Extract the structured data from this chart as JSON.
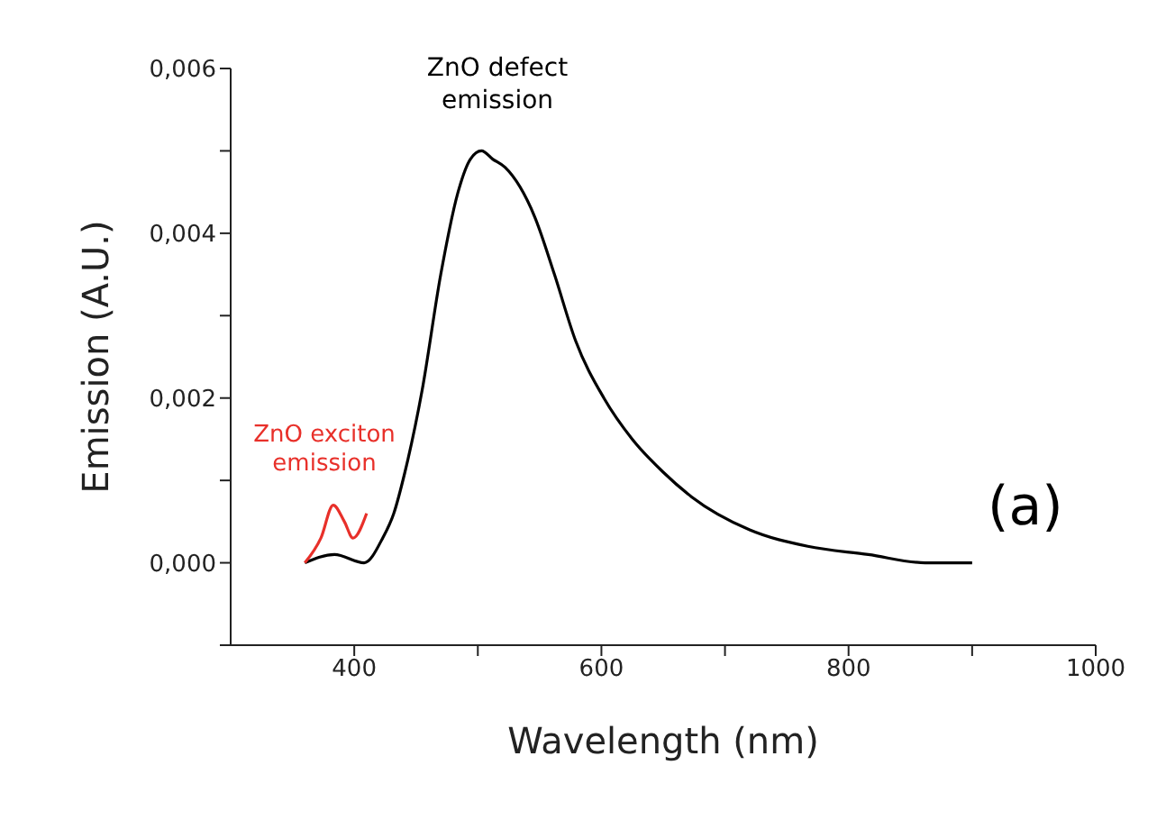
{
  "chart_data": {
    "type": "line",
    "xlabel": "Wavelength (nm)",
    "ylabel": "Emission (A.U.)",
    "xlim": [
      300,
      1000
    ],
    "xticks": [
      400,
      {
        "value": 500,
        "label": null
      },
      600,
      {
        "value": 700,
        "label": null
      },
      800,
      {
        "value": 900,
        "label": null
      },
      1000
    ],
    "ylim": [
      -0.001,
      0.006
    ],
    "yticks": [
      {
        "value": -0.001,
        "label": null
      },
      {
        "value": 0,
        "label": "0,000"
      },
      {
        "value": 0.001,
        "label": null
      },
      {
        "value": 0.002,
        "label": "0,002"
      },
      {
        "value": 0.003,
        "label": null
      },
      {
        "value": 0.004,
        "label": "0,004"
      },
      {
        "value": 0.005,
        "label": null
      },
      {
        "value": 0.006,
        "label": "0,006"
      }
    ],
    "grid": false,
    "legend": false,
    "marker": "none",
    "line_style": "solid",
    "series": [
      {
        "color": "#000000",
        "x": [
          360,
          384,
          408,
          423,
          432,
          441,
          455,
          470,
          484,
          494,
          503,
          512,
          522,
          546,
          562,
          579,
          602,
          625,
          650,
          673,
          720,
          767,
          816,
          862,
          900
        ],
        "values": [
          0,
          0.0001,
          0,
          0.0003,
          0.0006,
          0.0011,
          0.0021,
          0.0035,
          0.0045,
          0.0049,
          0.005,
          0.0049,
          0.0048,
          0.0042,
          0.0035,
          0.0027,
          0.002,
          0.0015,
          0.0011,
          0.0008,
          0.0004,
          0.0002,
          0.0001,
          0,
          0
        ]
      },
      {
        "color": "#e8302a",
        "x": [
          360,
          373,
          383,
          392,
          399,
          410
        ],
        "values": [
          0,
          0.0003,
          0.0007,
          0.0005,
          0.0003,
          0.0006
        ]
      }
    ],
    "annotations": [
      "ZnO defect emission",
      "ZnO exciton emission",
      "(a)"
    ]
  }
}
